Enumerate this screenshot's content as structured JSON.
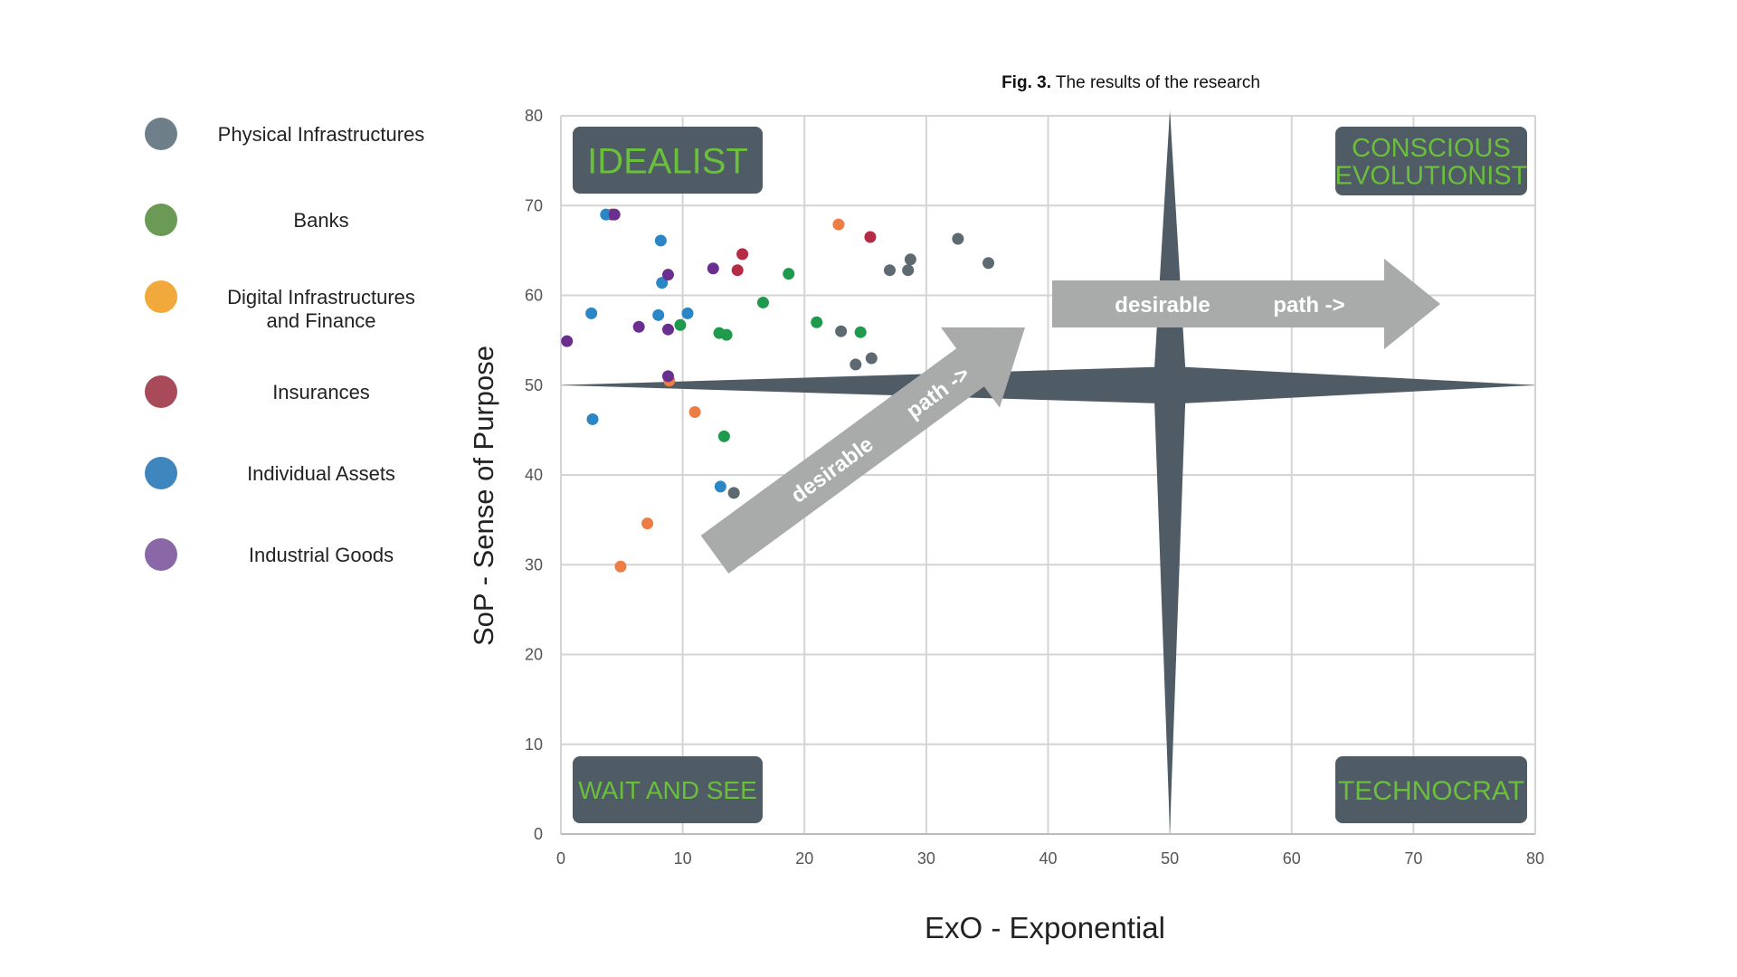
{
  "caption": {
    "bold": "Fig. 3.",
    "rest": " The results of the research"
  },
  "legend": [
    {
      "label": "Physical Infrastructures",
      "color": "#6f7f89"
    },
    {
      "label": "Banks",
      "color": "#6a9a56"
    },
    {
      "label": "Digital Infrastructures\nand Finance",
      "color": "#f0a93a"
    },
    {
      "label": "Insurances",
      "color": "#a84a5a"
    },
    {
      "label": "Individual Assets",
      "color": "#3f86bf"
    },
    {
      "label": "Industrial Goods",
      "color": "#8a68a8"
    }
  ],
  "quadrants": {
    "top_left": "IDEALIST",
    "top_right_line1": "CONSCIOUS",
    "top_right_line2": "EVOLUTIONIST",
    "bottom_left": "WAIT AND SEE",
    "bottom_right": "TECHNOCRAT",
    "label_color": "#6abf3b",
    "box_color": "#4f5b65"
  },
  "arrows": {
    "diagonal_word1": "desirable",
    "diagonal_word2": "path ->",
    "horizontal_word1": "desirable",
    "horizontal_word2": "path ->",
    "arrow_color": "#a9aaaa",
    "star_color": "#4f5b65"
  },
  "chart_data": {
    "type": "scatter",
    "xlabel": "ExO - Exponential",
    "ylabel": "SoP - Sense of Purpose",
    "xlim": [
      0,
      80
    ],
    "ylim": [
      0,
      80
    ],
    "x_ticks": [
      "0",
      "10",
      "20",
      "30",
      "40",
      "50",
      "60",
      "70",
      "80"
    ],
    "y_ticks": [
      "0",
      "10",
      "20",
      "30",
      "40",
      "50",
      "60",
      "70",
      "80"
    ],
    "grid": true,
    "series": [
      {
        "name": "Physical Infrastructures",
        "color": "#5e6a72",
        "points": [
          [
            23,
            56
          ],
          [
            24.2,
            52.3
          ],
          [
            25.5,
            53
          ],
          [
            27,
            62.8
          ],
          [
            28.5,
            62.8
          ],
          [
            28.7,
            64
          ],
          [
            32.6,
            66.3
          ],
          [
            35.1,
            63.6
          ],
          [
            14.2,
            38
          ]
        ]
      },
      {
        "name": "Banks",
        "color": "#1f9a4c",
        "points": [
          [
            9.8,
            56.7
          ],
          [
            13,
            55.8
          ],
          [
            13.6,
            55.6
          ],
          [
            16.6,
            59.2
          ],
          [
            18.7,
            62.4
          ],
          [
            21,
            57
          ],
          [
            24.6,
            55.9
          ],
          [
            13.4,
            44.3
          ]
        ]
      },
      {
        "name": "Digital Infrastructures and Finance",
        "color": "#ec7e45",
        "points": [
          [
            22.8,
            67.9
          ],
          [
            11,
            47
          ],
          [
            7.1,
            34.6
          ],
          [
            4.9,
            29.8
          ],
          [
            8.9,
            50.5
          ]
        ]
      },
      {
        "name": "Insurances",
        "color": "#b52a45",
        "points": [
          [
            4.2,
            69
          ],
          [
            14.9,
            64.6
          ],
          [
            14.5,
            62.8
          ],
          [
            25.4,
            66.5
          ]
        ]
      },
      {
        "name": "Individual Assets",
        "color": "#2a86c4",
        "points": [
          [
            3.7,
            69
          ],
          [
            8.2,
            66.1
          ],
          [
            8.3,
            61.4
          ],
          [
            2.5,
            58
          ],
          [
            8,
            57.8
          ],
          [
            10.4,
            58
          ],
          [
            2.6,
            46.2
          ],
          [
            13.1,
            38.7
          ]
        ]
      },
      {
        "name": "Industrial Goods",
        "color": "#6a2f8e",
        "points": [
          [
            4.4,
            69
          ],
          [
            8.8,
            62.3
          ],
          [
            12.5,
            63
          ],
          [
            0.5,
            54.9
          ],
          [
            6.4,
            56.5
          ],
          [
            8.8,
            56.2
          ],
          [
            8.8,
            51
          ]
        ]
      }
    ]
  }
}
